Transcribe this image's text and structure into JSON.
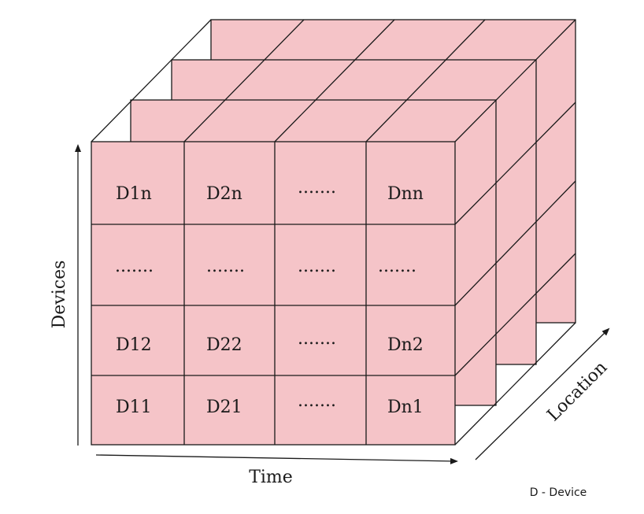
{
  "diagram": {
    "front_grid": [
      [
        "D1n",
        "D2n",
        ".......",
        "Dnn"
      ],
      [
        ".......",
        ".......",
        ".......",
        "......."
      ],
      [
        "D12",
        "D22",
        ".......",
        "Dn2"
      ],
      [
        "D11",
        "D21",
        ".......",
        "Dn1"
      ]
    ],
    "axes": {
      "vertical": "Devices",
      "horizontal": "Time",
      "depth": "Location"
    },
    "note": "D - Device",
    "colors": {
      "fill": "#f5c4c8",
      "stroke": "#1a1a1a"
    }
  }
}
